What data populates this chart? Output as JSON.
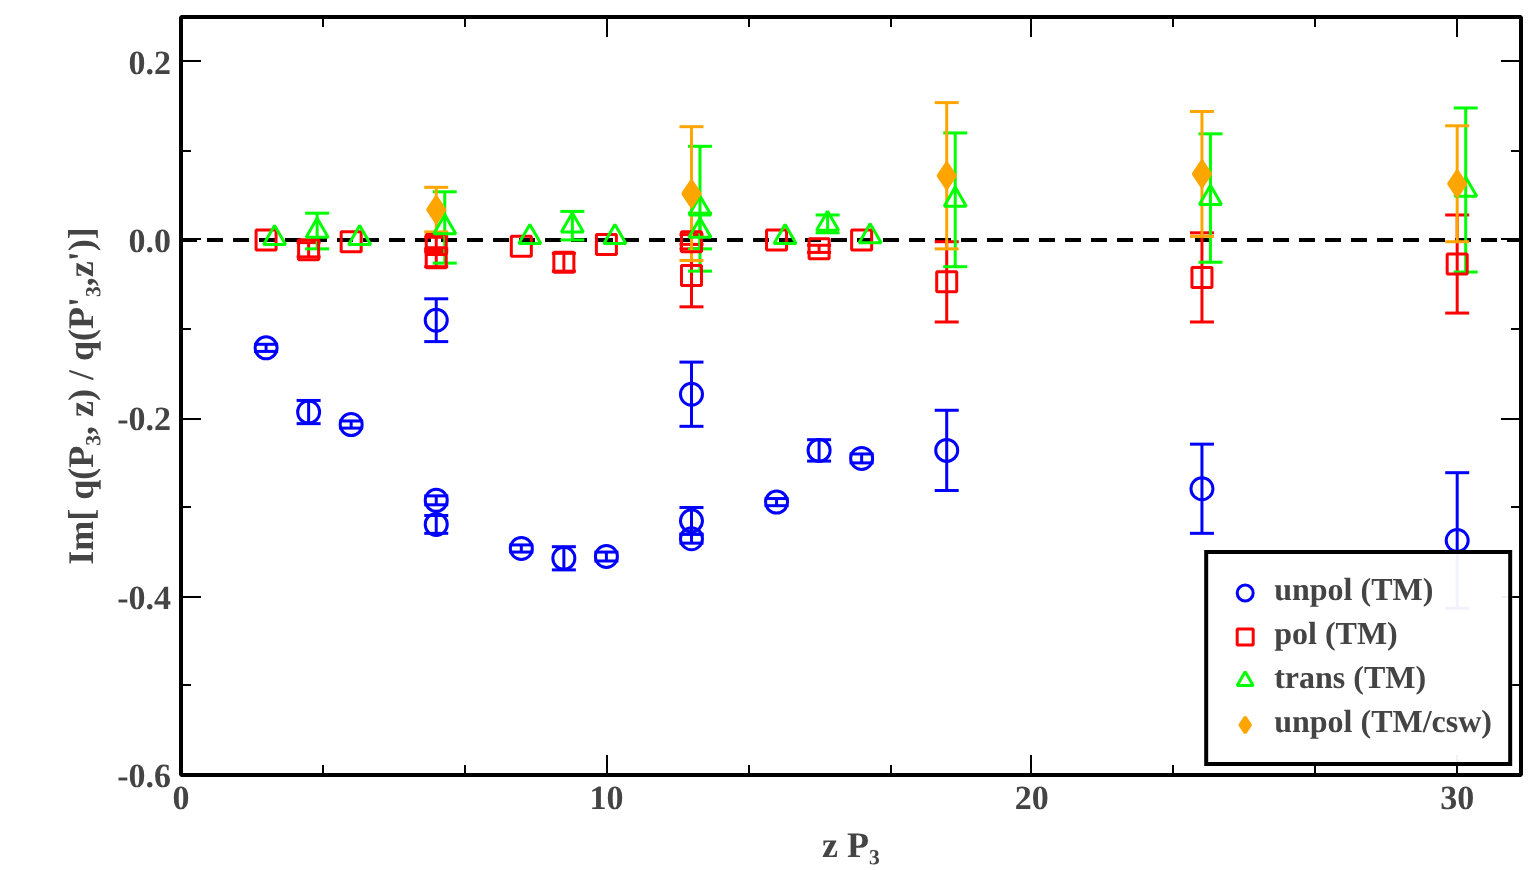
{
  "chart_data": {
    "type": "scatter",
    "xlabel": "z P₃",
    "ylabel": "Im[ q(P₃, z) / q(P'₃,z')]",
    "xlim": [
      0,
      31.5
    ],
    "ylim": [
      -0.6,
      0.25
    ],
    "xticks": [
      0,
      {
        "value": 3.333,
        "label": null
      },
      {
        "value": 6.667,
        "label": null
      },
      10,
      {
        "value": 13.333,
        "label": null
      },
      {
        "value": 16.667,
        "label": null
      },
      20,
      {
        "value": 23.333,
        "label": null
      },
      {
        "value": 26.667,
        "label": null
      },
      30
    ],
    "yticks": [
      -0.6,
      {
        "value": -0.5,
        "label": null
      },
      -0.4,
      {
        "value": -0.3,
        "label": null
      },
      -0.2,
      {
        "value": -0.1,
        "label": null
      },
      {
        "value": 0,
        "label": "0.0"
      },
      {
        "value": 0.1,
        "label": null
      },
      0.2
    ],
    "grid": false,
    "legend": "bottom right",
    "ref_lines": [
      {
        "axis": "y",
        "value": 0,
        "label": null,
        "color": "#000000",
        "line_style": "dashed"
      }
    ],
    "series": [
      {
        "name": "unpol (TM)",
        "color": "#0000ff",
        "marker": "circle",
        "x": [
          2,
          3,
          4,
          6,
          6,
          6,
          8,
          9,
          10,
          12,
          12,
          12,
          14,
          15,
          16,
          18,
          24,
          30
        ],
        "values": [
          -0.121,
          -0.193,
          -0.207,
          -0.09,
          -0.292,
          -0.319,
          -0.346,
          -0.357,
          -0.355,
          -0.173,
          -0.315,
          -0.335,
          -0.294,
          -0.236,
          -0.245,
          -0.236,
          -0.279,
          -0.337
        ],
        "errors": [
          0.004,
          0.013,
          0.004,
          0.024,
          0.005,
          0.01,
          0.004,
          0.013,
          0.005,
          0.036,
          0.015,
          0.005,
          0.004,
          0.012,
          0.005,
          0.045,
          0.05,
          0.076
        ]
      },
      {
        "name": "pol (TM)",
        "color": "#ff0000",
        "marker": "square",
        "x": [
          2,
          3,
          4,
          6,
          6,
          8,
          9,
          10,
          12,
          12,
          14,
          15,
          16,
          18,
          24,
          30
        ],
        "values": [
          0.0,
          -0.011,
          -0.002,
          -0.005,
          -0.02,
          -0.007,
          -0.025,
          -0.005,
          -0.002,
          -0.04,
          0.0,
          -0.01,
          0.0,
          -0.047,
          -0.042,
          -0.027
        ],
        "errors": [
          null,
          0.008,
          null,
          0.008,
          0.01,
          null,
          0.01,
          null,
          0.008,
          0.035,
          null,
          0.004,
          null,
          0.045,
          0.05,
          0.055
        ]
      },
      {
        "name": "trans (TM)",
        "color": "#00ff00",
        "marker": "triangle",
        "x": [
          2.2,
          3.2,
          4.2,
          6.2,
          8.2,
          9.2,
          10.2,
          12.2,
          12.2,
          14.2,
          15.2,
          16.2,
          18.2,
          24.2,
          30.2
        ],
        "values": [
          0.002,
          0.01,
          0.002,
          0.014,
          0.003,
          0.016,
          0.003,
          0.035,
          0.01,
          0.003,
          0.018,
          0.004,
          0.045,
          0.047,
          0.056
        ],
        "errors": [
          null,
          0.02,
          null,
          0.04,
          null,
          0.016,
          null,
          0.07,
          0.02,
          null,
          0.01,
          null,
          0.075,
          0.072,
          0.092
        ]
      },
      {
        "name": "unpol (TM/csw)",
        "color": "#ffa500",
        "marker": "diamond",
        "x": [
          6,
          12,
          18,
          24,
          30
        ],
        "values": [
          0.034,
          0.052,
          0.072,
          0.074,
          0.063
        ],
        "errors": [
          0.025,
          0.075,
          0.082,
          0.07,
          0.065
        ]
      }
    ]
  }
}
